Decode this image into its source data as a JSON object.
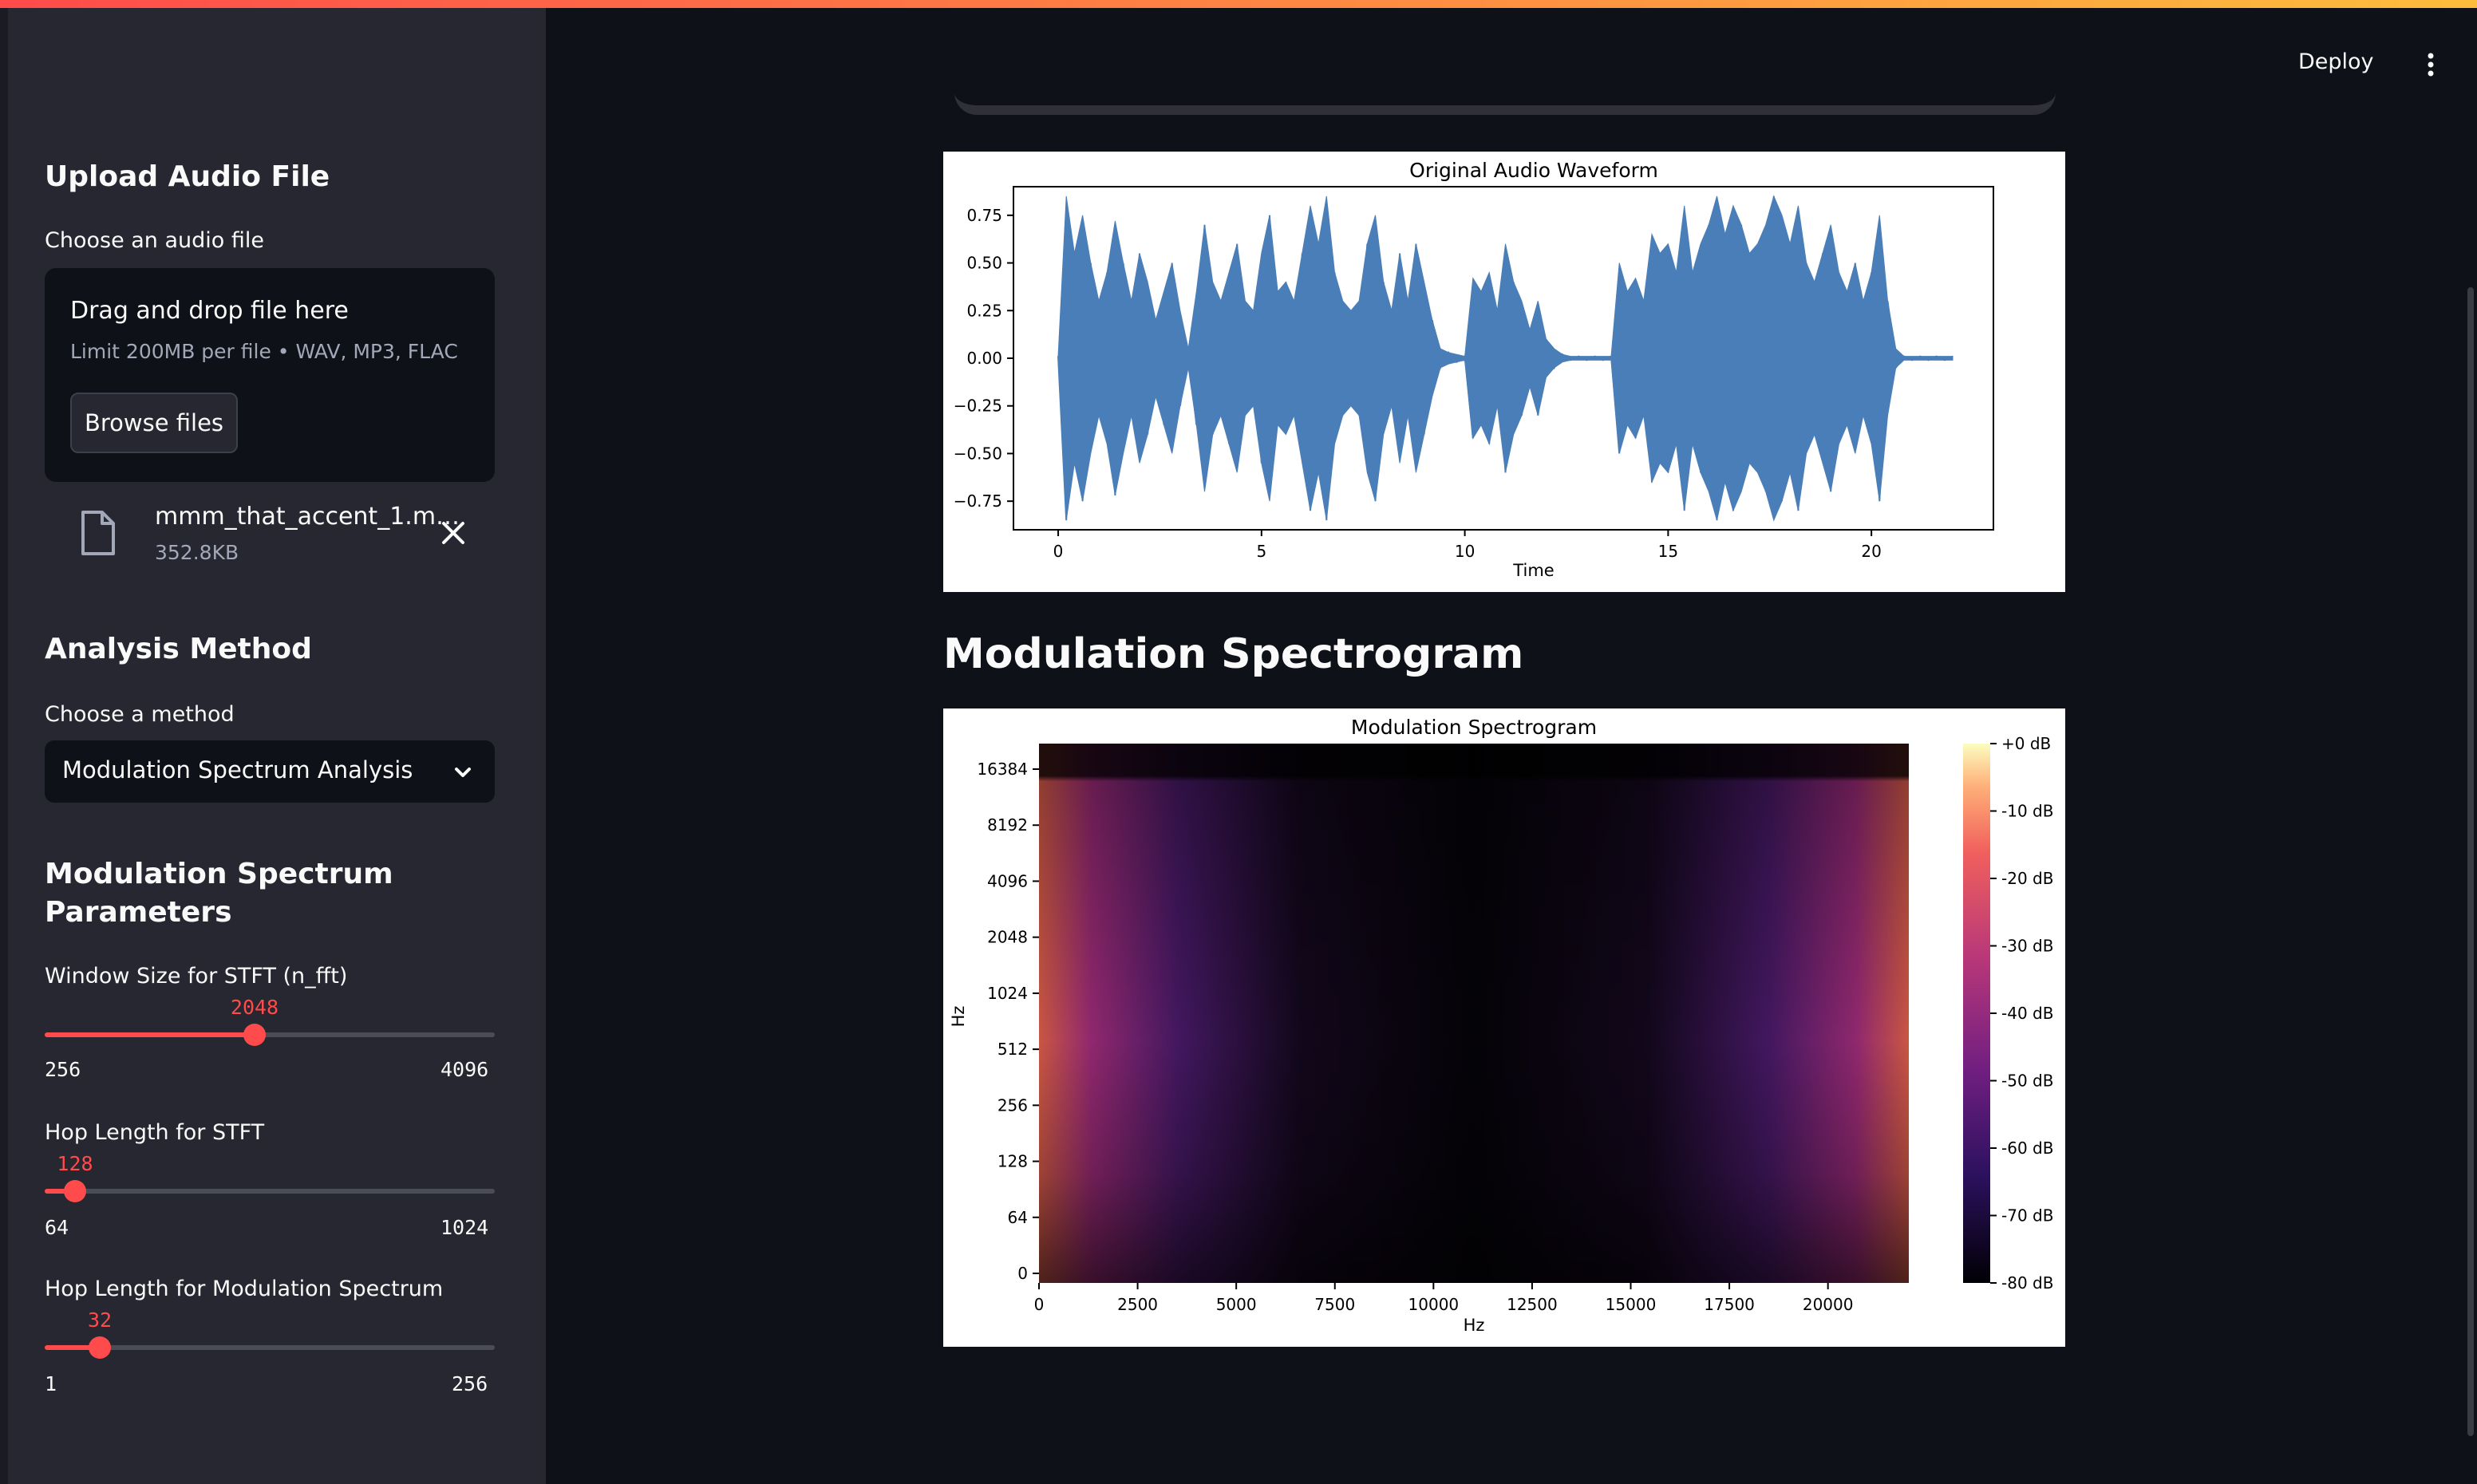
{
  "header": {
    "deploy_label": "Deploy"
  },
  "sidebar": {
    "upload": {
      "heading": "Upload Audio File",
      "label": "Choose an audio file",
      "dropzone_title": "Drag and drop file here",
      "dropzone_sub": "Limit 200MB per file • WAV, MP3, FLAC",
      "browse_label": "Browse files",
      "file_name": "mmm_that_accent_1.m…",
      "file_size": "352.8KB"
    },
    "method": {
      "heading": "Analysis Method",
      "label": "Choose a method",
      "selected": "Modulation Spectrum Analysis"
    },
    "params": {
      "heading_line1": "Modulation Spectrum",
      "heading_line2": "Parameters",
      "sliders": [
        {
          "label": "Window Size for STFT (n_fft)",
          "value": "2048",
          "min": "256",
          "max": "4096",
          "fraction": 0.467
        },
        {
          "label": "Hop Length for STFT",
          "value": "128",
          "min": "64",
          "max": "1024",
          "fraction": 0.067
        },
        {
          "label": "Hop Length for Modulation Spectrum",
          "value": "32",
          "min": "1",
          "max": "256",
          "fraction": 0.122
        }
      ]
    }
  },
  "main": {
    "section_title": "Modulation Spectrogram"
  },
  "chart_data": [
    {
      "type": "line",
      "title": "Original Audio Waveform",
      "xlabel": "Time",
      "ylabel": "",
      "xlim": [
        -1.1,
        23.0
      ],
      "ylim": [
        -0.9,
        0.9
      ],
      "x_ticks": [
        "0",
        "5",
        "10",
        "15",
        "20"
      ],
      "y_ticks": [
        "0.75",
        "0.50",
        "0.25",
        "0.00",
        "−0.25",
        "−0.50",
        "−0.75"
      ],
      "color": "#4a7eb8",
      "x": [
        0,
        0.2,
        0.4,
        0.6,
        0.8,
        1.0,
        1.2,
        1.4,
        1.6,
        1.8,
        2.0,
        2.2,
        2.4,
        2.6,
        2.8,
        3.0,
        3.2,
        3.4,
        3.6,
        3.8,
        4.0,
        4.2,
        4.4,
        4.6,
        4.8,
        5.0,
        5.2,
        5.4,
        5.6,
        5.8,
        6.0,
        6.2,
        6.4,
        6.6,
        6.8,
        7.0,
        7.2,
        7.4,
        7.6,
        7.8,
        8.0,
        8.2,
        8.4,
        8.6,
        8.8,
        9.0,
        9.2,
        9.4,
        9.6,
        9.8,
        10.0,
        10.2,
        10.4,
        10.6,
        10.8,
        11.0,
        11.2,
        11.4,
        11.6,
        11.8,
        12.0,
        12.2,
        12.4,
        12.6,
        12.8,
        13.0,
        13.2,
        13.4,
        13.6,
        13.8,
        14.0,
        14.2,
        14.4,
        14.6,
        14.8,
        15.0,
        15.2,
        15.4,
        15.6,
        15.8,
        16.0,
        16.2,
        16.4,
        16.6,
        16.8,
        17.0,
        17.2,
        17.4,
        17.6,
        17.8,
        18.0,
        18.2,
        18.4,
        18.6,
        18.8,
        19.0,
        19.2,
        19.4,
        19.6,
        19.8,
        20.0,
        20.2,
        20.4,
        20.6,
        20.8,
        21.0,
        21.2,
        21.4,
        21.6,
        21.8,
        22.0
      ],
      "y": [
        0.01,
        0.85,
        0.55,
        0.75,
        0.5,
        0.3,
        0.45,
        0.72,
        0.5,
        0.3,
        0.55,
        0.4,
        0.2,
        0.35,
        0.5,
        0.25,
        0.05,
        0.35,
        0.7,
        0.4,
        0.3,
        0.45,
        0.6,
        0.3,
        0.25,
        0.55,
        0.75,
        0.35,
        0.4,
        0.3,
        0.55,
        0.8,
        0.6,
        0.85,
        0.45,
        0.3,
        0.25,
        0.3,
        0.6,
        0.75,
        0.4,
        0.25,
        0.55,
        0.3,
        0.6,
        0.4,
        0.2,
        0.05,
        0.03,
        0.02,
        0.01,
        0.42,
        0.35,
        0.45,
        0.25,
        0.6,
        0.4,
        0.3,
        0.15,
        0.3,
        0.1,
        0.05,
        0.02,
        0.01,
        0.01,
        0.01,
        0.01,
        0.01,
        0.01,
        0.5,
        0.35,
        0.42,
        0.3,
        0.65,
        0.55,
        0.6,
        0.45,
        0.8,
        0.45,
        0.6,
        0.7,
        0.85,
        0.65,
        0.8,
        0.7,
        0.55,
        0.6,
        0.7,
        0.85,
        0.75,
        0.6,
        0.8,
        0.5,
        0.4,
        0.55,
        0.7,
        0.45,
        0.35,
        0.5,
        0.3,
        0.45,
        0.75,
        0.3,
        0.05,
        0.01,
        0.01,
        0.01,
        0.01,
        0.01,
        0.01,
        0.01
      ]
    },
    {
      "type": "heatmap",
      "title": "Modulation Spectrogram",
      "xlabel": "Hz",
      "ylabel": "Hz",
      "xlim": [
        0,
        22050
      ],
      "x_ticks": [
        "0",
        "2500",
        "5000",
        "7500",
        "10000",
        "12500",
        "15000",
        "17500",
        "20000"
      ],
      "y_ticks": [
        "0",
        "64",
        "128",
        "256",
        "512",
        "1024",
        "2048",
        "4096",
        "8192",
        "16384"
      ],
      "y_scale": "symlog",
      "colormap": "magma",
      "colorbar_ticks": [
        "+0 dB",
        "-10 dB",
        "-20 dB",
        "-30 dB",
        "-40 dB",
        "-50 dB",
        "-60 dB",
        "-70 dB",
        "-80 dB"
      ],
      "value_range_db": [
        -80,
        0
      ]
    }
  ]
}
